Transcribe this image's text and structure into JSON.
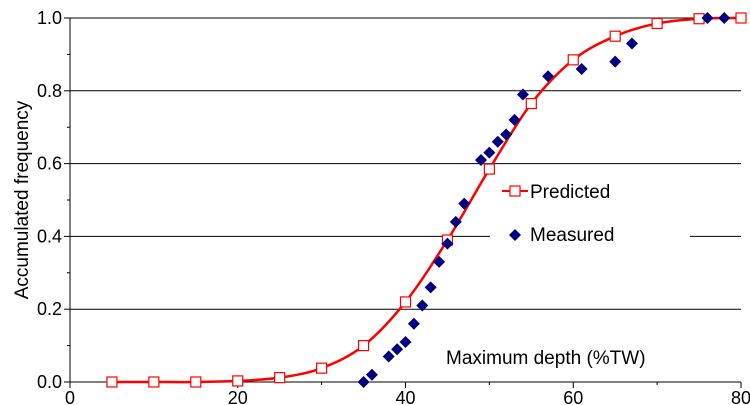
{
  "chart_data": {
    "type": "scatter",
    "title": "",
    "xlabel": "Maximum depth (%TW)",
    "ylabel": "Accumulated frequency",
    "xlim": [
      0,
      80
    ],
    "ylim": [
      0,
      1.0
    ],
    "x_ticks": [
      {
        "value": 0,
        "label": "0"
      },
      {
        "value": 20,
        "label": "20"
      },
      {
        "value": 40,
        "label": "40"
      },
      {
        "value": 60,
        "label": "60"
      },
      {
        "value": 80,
        "label": "80"
      }
    ],
    "y_ticks": [
      {
        "value": 0,
        "label": "0.0"
      },
      {
        "value": 0.2,
        "label": "0.2"
      },
      {
        "value": 0.4,
        "label": "0.4"
      },
      {
        "value": 0.6,
        "label": "0.6"
      },
      {
        "value": 0.8,
        "label": "0.8"
      },
      {
        "value": 1.0,
        "label": "1.0"
      }
    ],
    "grid": "horizontal",
    "legend_position": "center-right",
    "series": [
      {
        "name": "Predicted",
        "style": "line-with-open-square-markers",
        "color": "#ff0000",
        "points": [
          [
            5,
            0.0
          ],
          [
            10,
            0.0
          ],
          [
            15,
            0.0
          ],
          [
            20,
            0.003
          ],
          [
            25,
            0.012
          ],
          [
            30,
            0.038
          ],
          [
            35,
            0.1
          ],
          [
            40,
            0.22
          ],
          [
            45,
            0.39
          ],
          [
            50,
            0.585
          ],
          [
            55,
            0.765
          ],
          [
            60,
            0.885
          ],
          [
            65,
            0.95
          ],
          [
            70,
            0.985
          ],
          [
            75,
            0.998
          ],
          [
            80,
            1.0
          ]
        ]
      },
      {
        "name": "Measured",
        "style": "diamond-markers",
        "color": "#000080",
        "points": [
          [
            35,
            0.0
          ],
          [
            36,
            0.02
          ],
          [
            38,
            0.07
          ],
          [
            39,
            0.09
          ],
          [
            40,
            0.11
          ],
          [
            41,
            0.16
          ],
          [
            42,
            0.21
          ],
          [
            43,
            0.26
          ],
          [
            44,
            0.33
          ],
          [
            45,
            0.38
          ],
          [
            46,
            0.44
          ],
          [
            47,
            0.49
          ],
          [
            49,
            0.61
          ],
          [
            50,
            0.63
          ],
          [
            51,
            0.66
          ],
          [
            52,
            0.68
          ],
          [
            53,
            0.72
          ],
          [
            54,
            0.79
          ],
          [
            57,
            0.84
          ],
          [
            61,
            0.86
          ],
          [
            65,
            0.88
          ],
          [
            67,
            0.93
          ],
          [
            76,
            1.0
          ],
          [
            78,
            1.0
          ]
        ]
      }
    ]
  }
}
